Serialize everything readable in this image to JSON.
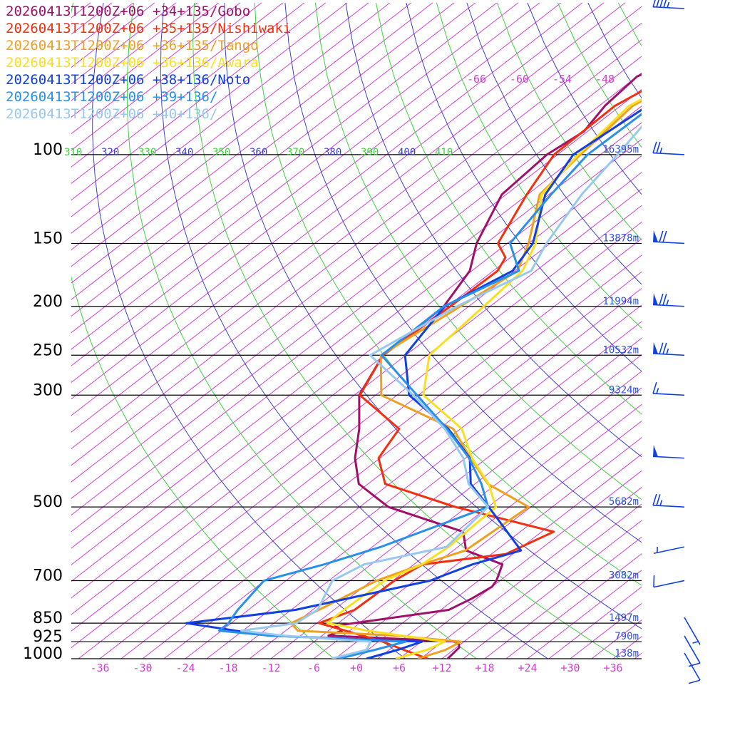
{
  "chart_data": {
    "type": "line",
    "title": "",
    "xlabel": "",
    "ylabel": "",
    "x_axis": {
      "scale": "skew-T",
      "xlim": [
        -40,
        40
      ],
      "ticks": [
        -36,
        -30,
        -24,
        -18,
        -12,
        -6,
        0,
        6,
        12,
        18,
        24,
        30,
        36
      ],
      "tick_labels": [
        "-36",
        "-30",
        "-24",
        "-18",
        "-12",
        "-6",
        "+0",
        "+6",
        "+12",
        "+18",
        "+24",
        "+30",
        "+36"
      ]
    },
    "y_axis": {
      "scale": "log-pressure",
      "ylim": [
        1000,
        60
      ],
      "levels": [
        100,
        150,
        200,
        250,
        300,
        500,
        700,
        850,
        925,
        1000
      ],
      "level_labels": [
        "100",
        "150",
        "200",
        "250",
        "300",
        "500",
        "700",
        "850",
        "925",
        "1000"
      ]
    },
    "heights": [
      {
        "p": 100,
        "label": "16395m"
      },
      {
        "p": 150,
        "label": "13878m"
      },
      {
        "p": 200,
        "label": "11994m"
      },
      {
        "p": 250,
        "label": "10532m"
      },
      {
        "p": 300,
        "label": "9324m"
      },
      {
        "p": 500,
        "label": "5682m"
      },
      {
        "p": 700,
        "label": "3082m"
      },
      {
        "p": 850,
        "label": "1497m"
      },
      {
        "p": 925,
        "label": "790m"
      },
      {
        "p": 1000,
        "label": "138m"
      }
    ],
    "upper_temp_labels": [
      "-66",
      "-60",
      "-54",
      "-48"
    ],
    "theta_labels": [
      {
        "value": "310",
        "color": "#40d040"
      },
      {
        "value": "320",
        "color": "#4040c8"
      },
      {
        "value": "330",
        "color": "#40d040"
      },
      {
        "value": "340",
        "color": "#4040c8"
      },
      {
        "value": "350",
        "color": "#40d040"
      },
      {
        "value": "360",
        "color": "#4040c8"
      },
      {
        "value": "370",
        "color": "#40d040"
      },
      {
        "value": "380",
        "color": "#4040c8"
      },
      {
        "value": "390",
        "color": "#40d040"
      },
      {
        "value": "400",
        "color": "#4040c8"
      },
      {
        "value": "410",
        "color": "#40d040"
      }
    ],
    "grid": true,
    "legend_position": "top-left",
    "series": [
      {
        "name": "20260413T1200Z+06 +34+135/Gobo",
        "color": "#a0106a",
        "points": [
          [
            1000,
            12.8
          ],
          [
            950,
            12.4
          ],
          [
            925,
            11.2
          ],
          [
            900,
            -8.1
          ],
          [
            880,
            -7.1
          ],
          [
            860,
            -8.9
          ],
          [
            800,
            4.1
          ],
          [
            760,
            5.3
          ],
          [
            720,
            6.0
          ],
          [
            700,
            5.5
          ],
          [
            650,
            3.4
          ],
          [
            610,
            -4.2
          ],
          [
            560,
            -8.0
          ],
          [
            500,
            -23.0
          ],
          [
            450,
            -31.3
          ],
          [
            400,
            -36.5
          ],
          [
            350,
            -41.2
          ],
          [
            300,
            -47.3
          ],
          [
            250,
            -51.2
          ],
          [
            200,
            -51.5
          ],
          [
            170,
            -54.3
          ],
          [
            150,
            -58.3
          ],
          [
            120,
            -63.6
          ],
          [
            100,
            -64.5
          ],
          [
            90,
            -63.5
          ],
          [
            80,
            -65.2
          ],
          [
            70,
            -66.0
          ],
          [
            65,
            -64.0
          ],
          [
            60,
            -57.0
          ]
        ]
      },
      {
        "name": "20260413T1200Z+06 +35+135/Nishiwaki",
        "color": "#f03010",
        "points": [
          [
            1000,
            10.0
          ],
          [
            960,
            5.0
          ],
          [
            925,
            0.6
          ],
          [
            880,
            -6.6
          ],
          [
            850,
            -11.7
          ],
          [
            800,
            -9.1
          ],
          [
            700,
            -8.8
          ],
          [
            650,
            -7.8
          ],
          [
            620,
            2.0
          ],
          [
            560,
            4.7
          ],
          [
            500,
            -13.6
          ],
          [
            450,
            -27.6
          ],
          [
            400,
            -33.2
          ],
          [
            350,
            -35.6
          ],
          [
            300,
            -47.2
          ],
          [
            250,
            -51.2
          ],
          [
            200,
            -50.6
          ],
          [
            170,
            -50.4
          ],
          [
            160,
            -51.7
          ],
          [
            150,
            -55.3
          ],
          [
            120,
            -60.1
          ],
          [
            100,
            -63.5
          ],
          [
            80,
            -63.8
          ],
          [
            70,
            -61.6
          ],
          [
            60,
            -55.0
          ]
        ]
      },
      {
        "name": "20260413T1200Z+06 +36+135/Tango",
        "color": "#f0a020",
        "points": [
          [
            1000,
            8.6
          ],
          [
            960,
            10.9
          ],
          [
            925,
            11.6
          ],
          [
            900,
            1.3
          ],
          [
            880,
            -13.3
          ],
          [
            850,
            -15.6
          ],
          [
            800,
            -14.1
          ],
          [
            700,
            -11.3
          ],
          [
            650,
            -7.9
          ],
          [
            610,
            -4.3
          ],
          [
            500,
            -3.3
          ],
          [
            450,
            -13.2
          ],
          [
            400,
            -20.3
          ],
          [
            350,
            -28.0
          ],
          [
            300,
            -44.2
          ],
          [
            250,
            -51.5
          ],
          [
            200,
            -49.2
          ],
          [
            170,
            -47.6
          ],
          [
            150,
            -51.0
          ],
          [
            120,
            -58.3
          ],
          [
            100,
            -59.8
          ],
          [
            80,
            -61.3
          ],
          [
            70,
            -59.0
          ],
          [
            60,
            -53.0
          ]
        ]
      },
      {
        "name": "20260413T1200Z+06 +36+136/Awara",
        "color": "#f8e020",
        "points": [
          [
            1000,
            5.5
          ],
          [
            960,
            8.3
          ],
          [
            925,
            9.3
          ],
          [
            900,
            2.2
          ],
          [
            880,
            -3.5
          ],
          [
            850,
            -10.5
          ],
          [
            800,
            -10.6
          ],
          [
            700,
            -10.2
          ],
          [
            650,
            -7.9
          ],
          [
            600,
            -7.3
          ],
          [
            500,
            -7.9
          ],
          [
            450,
            -13.1
          ],
          [
            400,
            -20.1
          ],
          [
            350,
            -26.8
          ],
          [
            300,
            -38.3
          ],
          [
            250,
            -44.7
          ],
          [
            200,
            -45.9
          ],
          [
            170,
            -46.9
          ],
          [
            150,
            -50.0
          ],
          [
            120,
            -58.0
          ],
          [
            100,
            -60.1
          ],
          [
            80,
            -61.8
          ],
          [
            70,
            -59.2
          ],
          [
            60,
            -51.0
          ]
        ]
      },
      {
        "name": "20260413T1200Z+06 +38+136/Noto",
        "color": "#1040e0",
        "points": [
          [
            1000,
            1.4
          ],
          [
            960,
            4.2
          ],
          [
            925,
            6.1
          ],
          [
            900,
            -16.5
          ],
          [
            880,
            -22.0
          ],
          [
            850,
            -30.3
          ],
          [
            800,
            -17.4
          ],
          [
            700,
            -3.8
          ],
          [
            650,
            -0.8
          ],
          [
            610,
            3.5
          ],
          [
            500,
            -8.9
          ],
          [
            450,
            -15.6
          ],
          [
            400,
            -20.4
          ],
          [
            350,
            -28.7
          ],
          [
            300,
            -40.3
          ],
          [
            250,
            -48.1
          ],
          [
            200,
            -51.4
          ],
          [
            170,
            -48.3
          ],
          [
            150,
            -50.4
          ],
          [
            120,
            -57.5
          ],
          [
            100,
            -60.8
          ],
          [
            80,
            -59.2
          ],
          [
            70,
            -57.3
          ],
          [
            60,
            -51.0
          ]
        ]
      },
      {
        "name": "20260413T1200Z+06 +39+136/",
        "color": "#2890e8",
        "points": [
          [
            1000,
            -2.5
          ],
          [
            960,
            1.0
          ],
          [
            925,
            3.8
          ],
          [
            900,
            -16.3
          ],
          [
            880,
            -24.3
          ],
          [
            850,
            -24.4
          ],
          [
            800,
            -25.5
          ],
          [
            700,
            -27.1
          ],
          [
            650,
            -21.6
          ],
          [
            600,
            -16.8
          ],
          [
            500,
            -9.0
          ],
          [
            450,
            -14.1
          ],
          [
            400,
            -20.5
          ],
          [
            350,
            -28.9
          ],
          [
            300,
            -39.2
          ],
          [
            250,
            -51.4
          ],
          [
            200,
            -51.5
          ],
          [
            170,
            -47.4
          ],
          [
            150,
            -53.6
          ],
          [
            120,
            -56.7
          ],
          [
            100,
            -58.8
          ],
          [
            80,
            -58.5
          ],
          [
            70,
            -55.8
          ],
          [
            60,
            -49.0
          ]
        ]
      },
      {
        "name": "20260413T1200Z+06 +40+136/",
        "color": "#98c8f0",
        "points": [
          [
            1000,
            -3.5
          ],
          [
            960,
            -0.2
          ],
          [
            925,
            -1.1
          ],
          [
            900,
            -14.4
          ],
          [
            880,
            -21.2
          ],
          [
            850,
            -14.9
          ],
          [
            800,
            -14.3
          ],
          [
            700,
            -17.5
          ],
          [
            650,
            -16.0
          ],
          [
            600,
            -7.6
          ],
          [
            500,
            -9.0
          ],
          [
            450,
            -15.9
          ],
          [
            400,
            -21.3
          ],
          [
            350,
            -29.2
          ],
          [
            300,
            -39.7
          ],
          [
            250,
            -53.0
          ],
          [
            200,
            -49.7
          ],
          [
            170,
            -45.7
          ],
          [
            150,
            -48.5
          ],
          [
            120,
            -52.4
          ],
          [
            100,
            -54.6
          ],
          [
            80,
            -57.5
          ],
          [
            70,
            -54.4
          ],
          [
            60,
            -48.0
          ]
        ]
      }
    ],
    "wind_barbs": [
      {
        "p": 60,
        "speed": 45
      },
      {
        "p": 100,
        "speed": 25
      },
      {
        "p": 150,
        "speed": 70
      },
      {
        "p": 200,
        "speed": 75
      },
      {
        "p": 250,
        "speed": 75
      },
      {
        "p": 300,
        "speed": 15
      },
      {
        "p": 400,
        "speed": 50
      },
      {
        "p": 500,
        "speed": 25
      },
      {
        "p": 600,
        "speed": 5
      },
      {
        "p": 700,
        "speed": 10
      }
    ],
    "wind_barbs_right": [
      {
        "p": 850,
        "speed": 5
      },
      {
        "p": 925,
        "speed": 10
      },
      {
        "p": 1000,
        "speed": 10
      }
    ],
    "colors": {
      "isobar": "#000000",
      "isotherm": "#d040d0",
      "dry_adiabat_a": "#4040c8",
      "dry_adiabat_b": "#40d040",
      "barb": "#1040e0"
    }
  }
}
